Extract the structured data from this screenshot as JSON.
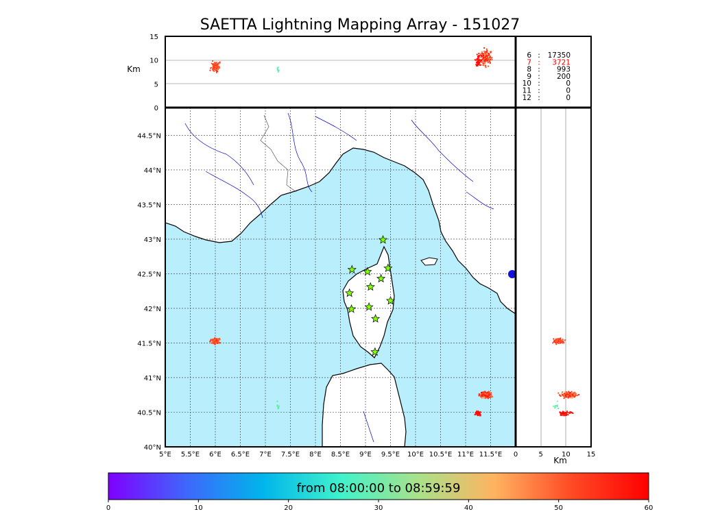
{
  "title": "SAETTA Lightning Mapping Array - 151027",
  "height_label": "Km",
  "stats": [
    {
      "level": "6",
      "count": "17350",
      "color": "#000000"
    },
    {
      "level": "7",
      "count": "3721",
      "color": "#ff0000"
    },
    {
      "level": "8",
      "count": "993",
      "color": "#000000"
    },
    {
      "level": "9",
      "count": "200",
      "color": "#000000"
    },
    {
      "level": "10",
      "count": "0",
      "color": "#000000"
    },
    {
      "level": "11",
      "count": "0",
      "color": "#000000"
    },
    {
      "level": "12",
      "count": "0",
      "color": "#000000"
    }
  ],
  "colorbar": {
    "label": "from 08:00:00 to 08:59:59",
    "ticks": [
      "0",
      "10",
      "20",
      "30",
      "40",
      "50",
      "60"
    ],
    "range": [
      0,
      60
    ],
    "colors": [
      "#7f00ff",
      "#3f66fc",
      "#00b5eb",
      "#3ff2cc",
      "#a8e28b",
      "#ffb360",
      "#ff4a25",
      "#ff0000"
    ]
  },
  "colors": {
    "sea": "#b9eefc",
    "land": "#ffffff",
    "rivers": "#0000cc",
    "stations": "#7fff00"
  },
  "chart_data": {
    "type": "scatter",
    "map": {
      "xlim": [
        5,
        12
      ],
      "ylim": [
        40,
        44.9
      ],
      "x_ticks": [
        "5°E",
        "5.5°E",
        "6°E",
        "6.5°E",
        "7°E",
        "7.5°E",
        "8°E",
        "8.5°E",
        "9°E",
        "9.5°E",
        "10°E",
        "10.5°E",
        "11°E",
        "11.5°E"
      ],
      "x_tick_values": [
        5,
        5.5,
        6,
        6.5,
        7,
        7.5,
        8,
        8.5,
        9,
        9.5,
        10,
        10.5,
        11,
        11.5
      ],
      "y_ticks": [
        "40°N",
        "40.5°N",
        "41°N",
        "41.5°N",
        "42°N",
        "42.5°N",
        "43°N",
        "43.5°N",
        "44°N",
        "44.5°N"
      ],
      "y_tick_values": [
        40,
        40.5,
        41,
        41.5,
        42,
        42.5,
        43,
        43.5,
        44,
        44.5
      ],
      "grid": true
    },
    "height_panel": {
      "ylim": [
        0,
        15
      ],
      "y_ticks": [
        "0",
        "5",
        "10",
        "15"
      ],
      "y_tick_values": [
        0,
        5,
        10,
        15
      ]
    },
    "side_panel": {
      "xlim": [
        0,
        15
      ],
      "x_ticks": [
        "0",
        "5",
        "10",
        "15"
      ],
      "x_tick_values": [
        0,
        5,
        10,
        15
      ],
      "xlabel": "Km"
    },
    "stations": [
      {
        "lon": 9.35,
        "lat": 42.99
      },
      {
        "lon": 8.73,
        "lat": 42.56
      },
      {
        "lon": 9.04,
        "lat": 42.53
      },
      {
        "lon": 9.45,
        "lat": 42.58
      },
      {
        "lon": 9.31,
        "lat": 42.43
      },
      {
        "lon": 9.1,
        "lat": 42.31
      },
      {
        "lon": 8.68,
        "lat": 42.22
      },
      {
        "lon": 9.5,
        "lat": 42.11
      },
      {
        "lon": 8.72,
        "lat": 41.99
      },
      {
        "lon": 9.07,
        "lat": 42.02
      },
      {
        "lon": 9.2,
        "lat": 41.85
      },
      {
        "lon": 9.19,
        "lat": 41.37
      }
    ],
    "clusters": [
      {
        "lon": 6.0,
        "lat": 41.53,
        "spread_lon": 0.12,
        "spread_lat": 0.05,
        "alt": 8.5,
        "spread_alt": 1.5,
        "time_min": 48,
        "time_max": 56,
        "n": 120
      },
      {
        "lon": 11.4,
        "lat": 40.75,
        "spread_lon": 0.15,
        "spread_lat": 0.06,
        "alt": 10.5,
        "spread_alt": 2.5,
        "time_min": 44,
        "time_max": 60,
        "n": 160
      },
      {
        "lon": 11.25,
        "lat": 40.48,
        "spread_lon": 0.08,
        "spread_lat": 0.05,
        "alt": 10.0,
        "spread_alt": 2.0,
        "time_min": 56,
        "time_max": 60,
        "n": 50
      },
      {
        "lon": 7.25,
        "lat": 40.6,
        "spread_lon": 0.04,
        "spread_lat": 0.08,
        "alt": 8.0,
        "spread_alt": 1.0,
        "time_min": 26,
        "time_max": 32,
        "n": 10
      }
    ]
  }
}
